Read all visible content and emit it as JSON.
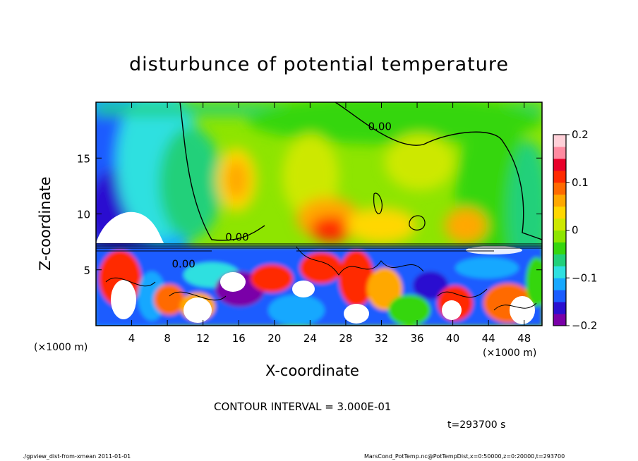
{
  "chart_data": {
    "type": "heatmap",
    "title": "disturbunce of potential temperature",
    "xlabel": "X-coordinate",
    "ylabel": "Z-coordinate",
    "x_unit_left": "(×1000 m)",
    "x_unit_right": "(×1000 m)",
    "xlim": [
      0,
      50
    ],
    "ylim": [
      0,
      20
    ],
    "x_ticks": [
      4,
      8,
      12,
      16,
      20,
      24,
      28,
      32,
      36,
      40,
      44,
      48
    ],
    "y_ticks": [
      5,
      10,
      15
    ],
    "colorbar": {
      "range": [
        -0.2,
        0.2
      ],
      "ticks": [
        {
          "value": 0.2,
          "label": "0.2"
        },
        {
          "value": 0.1,
          "label": "0.1"
        },
        {
          "value": 0.0,
          "label": "0"
        },
        {
          "value": -0.1,
          "label": "−0.1"
        },
        {
          "value": -0.2,
          "label": "−0.2"
        }
      ],
      "colors": [
        "#7a00a8",
        "#2a0fd0",
        "#1a5cff",
        "#17a8ff",
        "#2fe0e0",
        "#22d07a",
        "#36d60f",
        "#8ee500",
        "#cde800",
        "#ffd700",
        "#ffa800",
        "#ff6a00",
        "#ff2a00",
        "#e8002a",
        "#ff8aa0",
        "#ffd0d8"
      ]
    },
    "contour_labels": [
      {
        "text": "0.00",
        "x": 30.5,
        "z": 17.5
      },
      {
        "text": "0.00",
        "x": 14.5,
        "z": 7.6
      },
      {
        "text": "0.00",
        "x": 8.5,
        "z": 5.2
      }
    ],
    "contour_interval": "CONTOUR INTERVAL = 3.000E-01",
    "time": "t=293700 s"
  },
  "footer": {
    "left": "./gpview_dist-from-xmean  2011-01-01",
    "right": "MarsCond_PotTemp.nc@PotTempDist,x=0:50000,z=0:20000,t=293700"
  }
}
